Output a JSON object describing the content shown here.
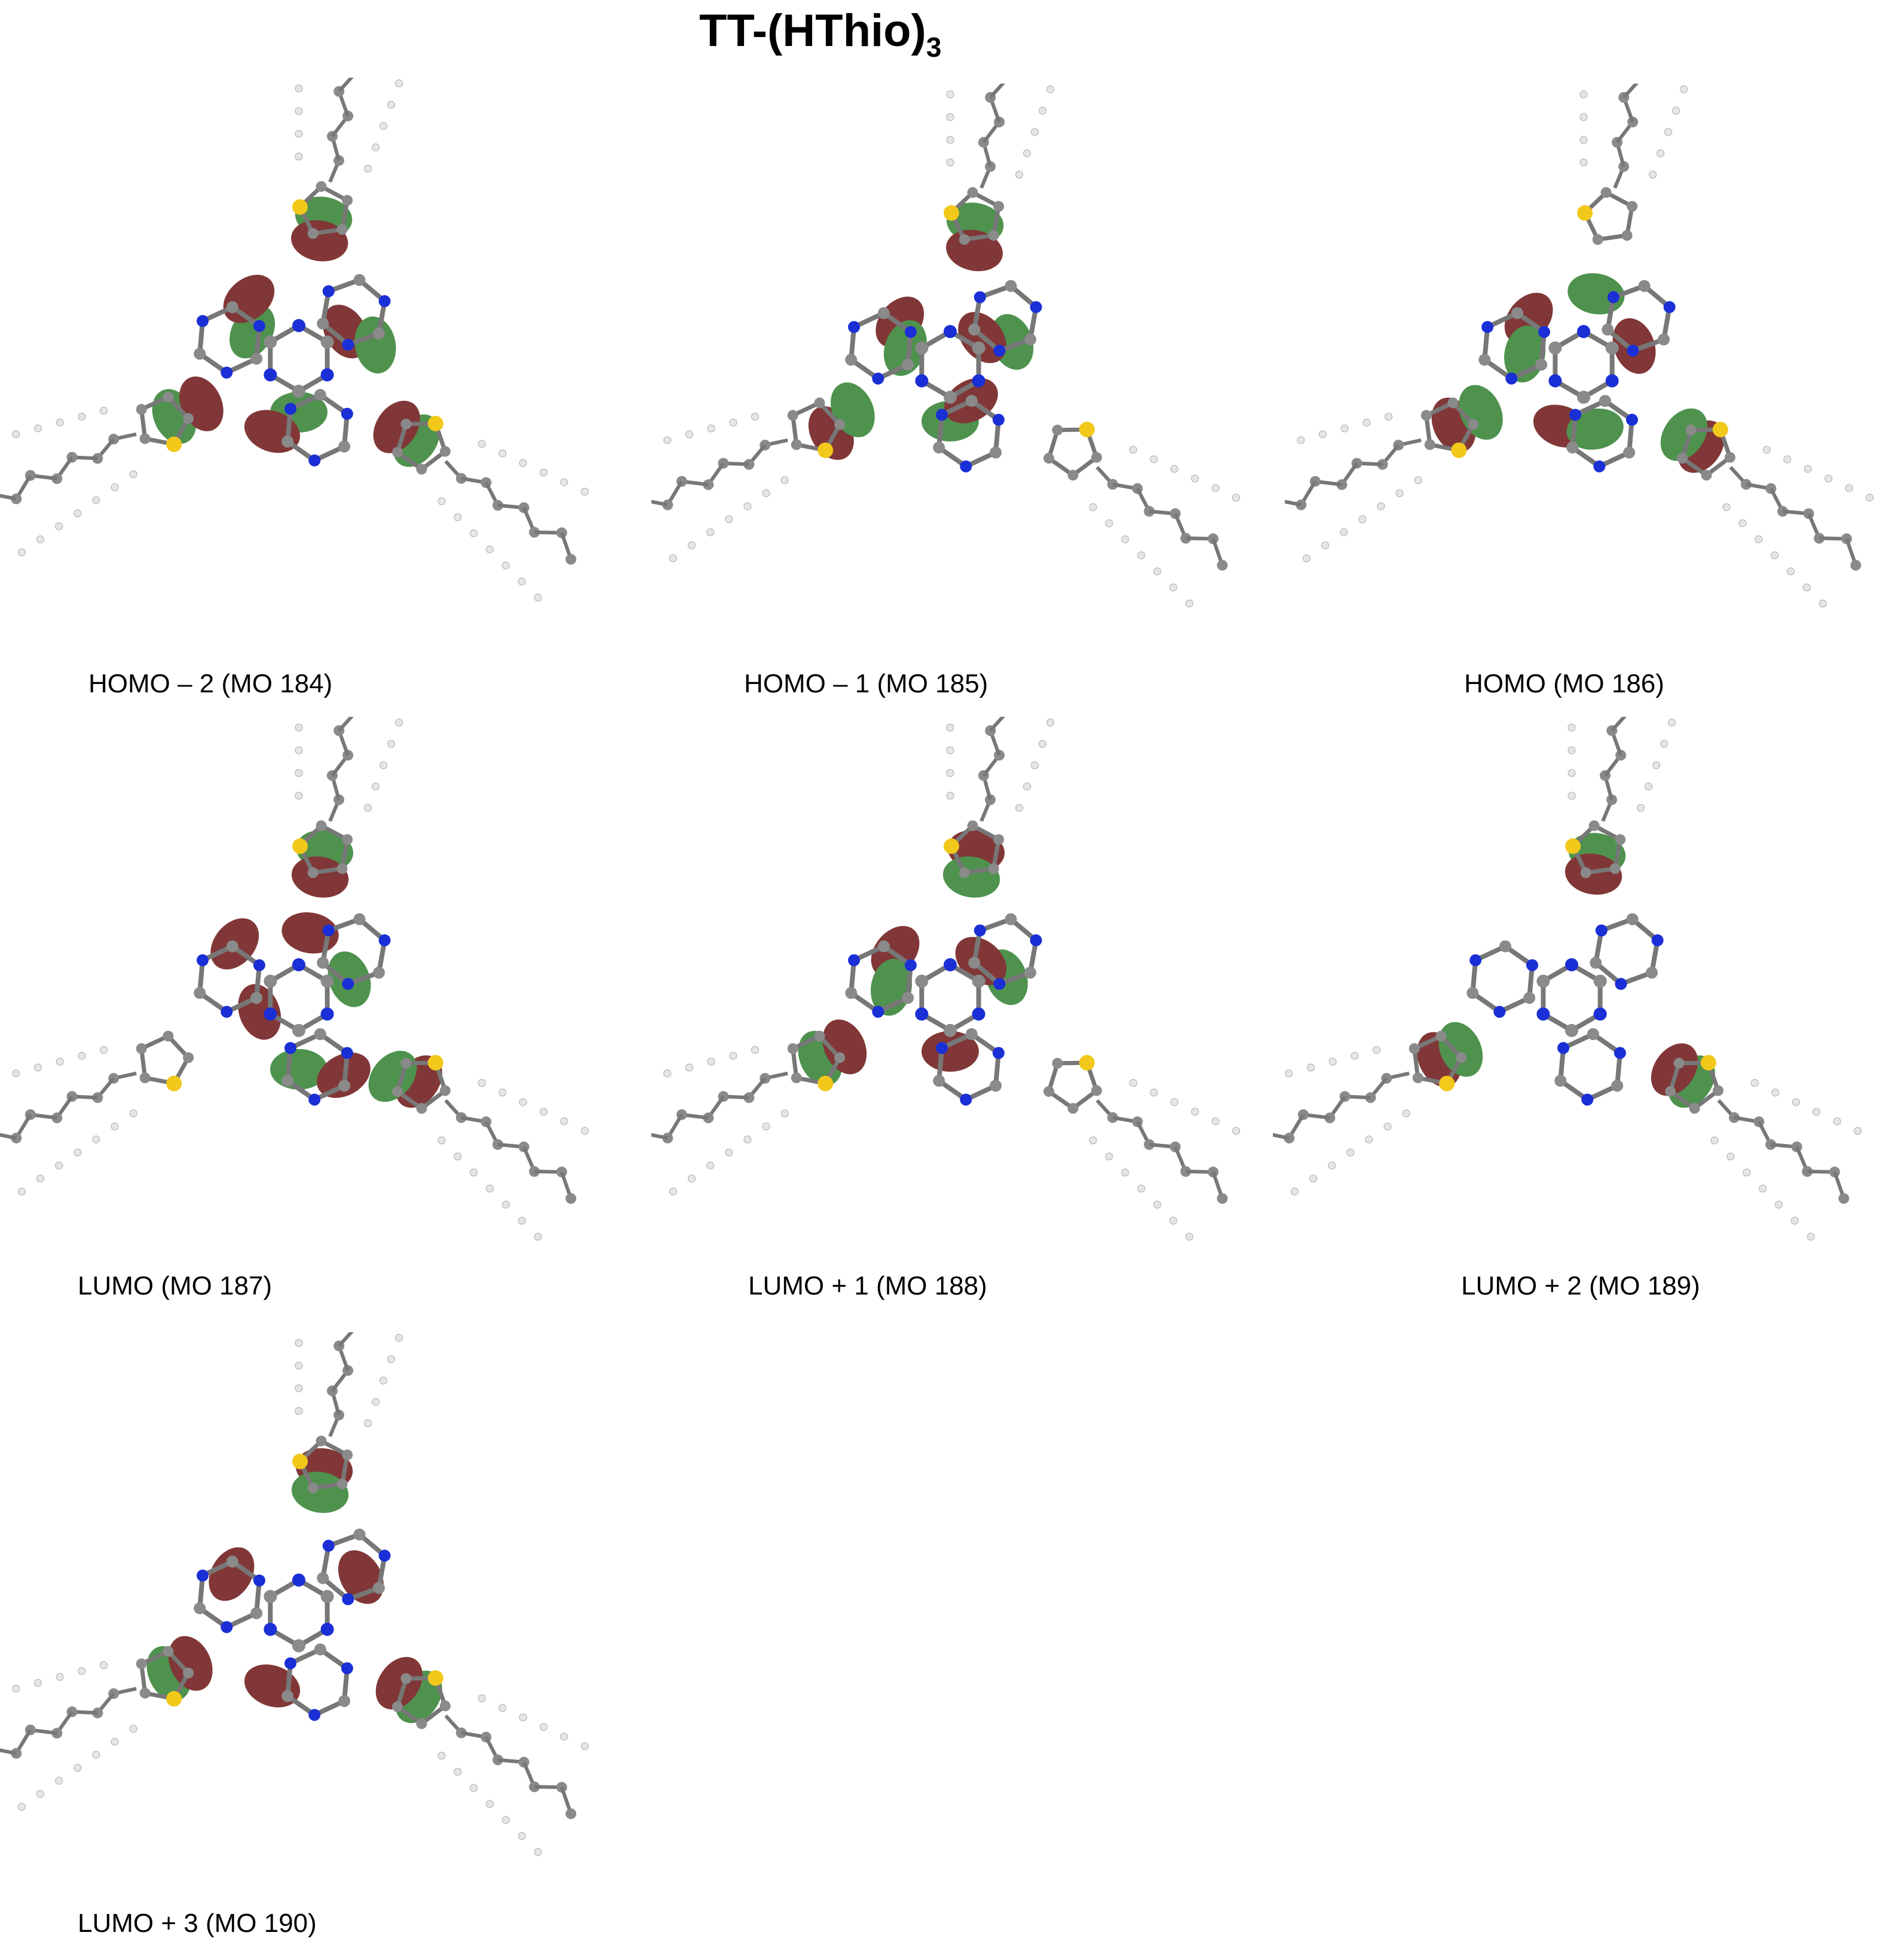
{
  "figure": {
    "title_main": "TT-(HThio)",
    "title_sub": "3"
  },
  "colors": {
    "lobe_positive": "#2f7f2f",
    "lobe_negative": "#6b1414",
    "carbon": "#8a8a8a",
    "hydrogen": "#e6e6e6",
    "nitrogen": "#1a2fd6",
    "sulfur": "#f2c81a",
    "background": "#ffffff"
  },
  "panels": [
    {
      "label": "HOMO – 2 (MO 184)",
      "orbital": "homo-2"
    },
    {
      "label": "HOMO – 1 (MO 185)",
      "orbital": "homo-1"
    },
    {
      "label": "HOMO (MO 186)",
      "orbital": "homo"
    },
    {
      "label": "LUMO (MO 187)",
      "orbital": "lumo"
    },
    {
      "label": "LUMO + 1 (MO 188)",
      "orbital": "lumo+1"
    },
    {
      "label": "LUMO + 2 (MO 189)",
      "orbital": "lumo+2"
    },
    {
      "label": "LUMO + 3 (MO 190)",
      "orbital": "lumo+3"
    }
  ]
}
